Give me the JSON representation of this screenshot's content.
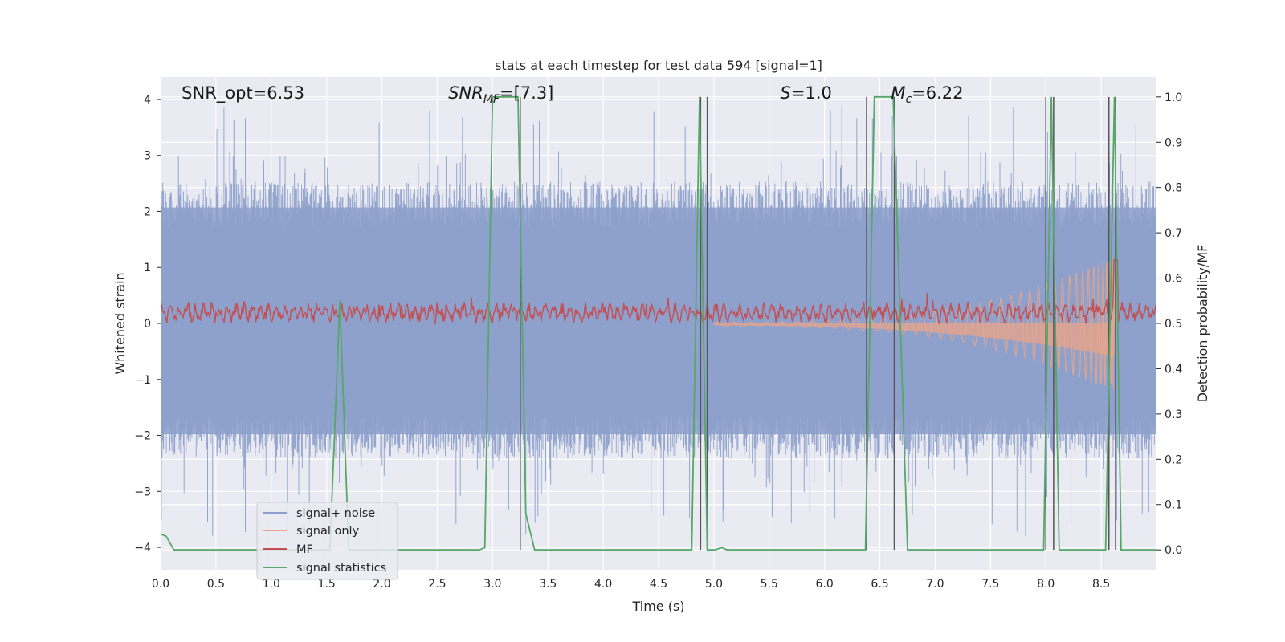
{
  "chart_data": {
    "type": "line",
    "title": "stats at each timestep for test data 594 [signal=1]",
    "xlabel": "Time (s)",
    "ylabel": "Whitened strain",
    "y2label": "Detection probability/MF",
    "xlim": [
      0,
      9
    ],
    "ylim": [
      -4.4,
      4.4
    ],
    "y2lim": [
      -0.044,
      1.044
    ],
    "grid": true,
    "legend_position": "lower-left",
    "x_ticks": [
      "0.0",
      "0.5",
      "1.0",
      "1.5",
      "2.0",
      "2.5",
      "3.0",
      "3.5",
      "4.0",
      "4.5",
      "5.0",
      "5.5",
      "6.0",
      "6.5",
      "7.0",
      "7.5",
      "8.0",
      "8.5"
    ],
    "y_ticks": [
      "4",
      "3",
      "2",
      "1",
      "0",
      "−1",
      "−2",
      "−3",
      "−4"
    ],
    "y2_ticks": [
      "1.0",
      "0.9",
      "0.8",
      "0.7",
      "0.6",
      "0.5",
      "0.4",
      "0.3",
      "0.2",
      "0.1",
      "0.0"
    ],
    "annotations": [
      {
        "id": "snr-opt",
        "text": "SNR_opt=6.53",
        "x": 0.19,
        "y": 4.0
      },
      {
        "id": "snr-mf",
        "text": "SNR_MF=[7.3]",
        "x": 2.6,
        "y": 4.0
      },
      {
        "id": "s-value",
        "text": "S=1.0",
        "x": 5.6,
        "y": 4.0
      },
      {
        "id": "mc-value",
        "text": "M_c=6.22",
        "x": 6.6,
        "y": 4.0
      }
    ],
    "vertical_markers": [
      3.25,
      4.88,
      4.94,
      6.38,
      6.63,
      8.0,
      8.07,
      8.57,
      8.63
    ],
    "series": [
      {
        "name": "signal+ noise",
        "color": "#8da0cb",
        "envelope_upper": 2.3,
        "envelope_lower": -2.2,
        "peak_max": 4.0,
        "peak_min": -3.9
      },
      {
        "name": "signal only",
        "color": "#e8a48a",
        "chirp_start": 5.0,
        "merger": 8.62,
        "peak_amplitude": 1.2
      },
      {
        "name": "MF",
        "color": "#c44e52",
        "baseline": 0.52,
        "peak": 0.6
      },
      {
        "name": "signal statistics",
        "color": "#55a868",
        "x": [
          0.0,
          0.05,
          0.12,
          1.53,
          1.62,
          1.7,
          2.88,
          2.93,
          3.0,
          3.23,
          3.3,
          3.38,
          4.8,
          4.87,
          4.94,
          5.01,
          5.07,
          5.12,
          5.18,
          6.37,
          6.45,
          6.62,
          6.75,
          7.98,
          8.05,
          8.12,
          8.54,
          8.62,
          8.68,
          9.0
        ],
        "values": [
          0.035,
          0.03,
          0.0,
          0.0,
          0.55,
          0.0,
          0.0,
          0.005,
          1.0,
          1.0,
          0.08,
          0.0,
          0.0,
          1.0,
          0.0,
          0.0,
          0.005,
          0.0,
          0.0,
          0.0,
          1.0,
          1.0,
          0.0,
          0.0,
          1.0,
          0.0,
          0.0,
          1.0,
          0.0,
          0.0
        ]
      }
    ]
  }
}
